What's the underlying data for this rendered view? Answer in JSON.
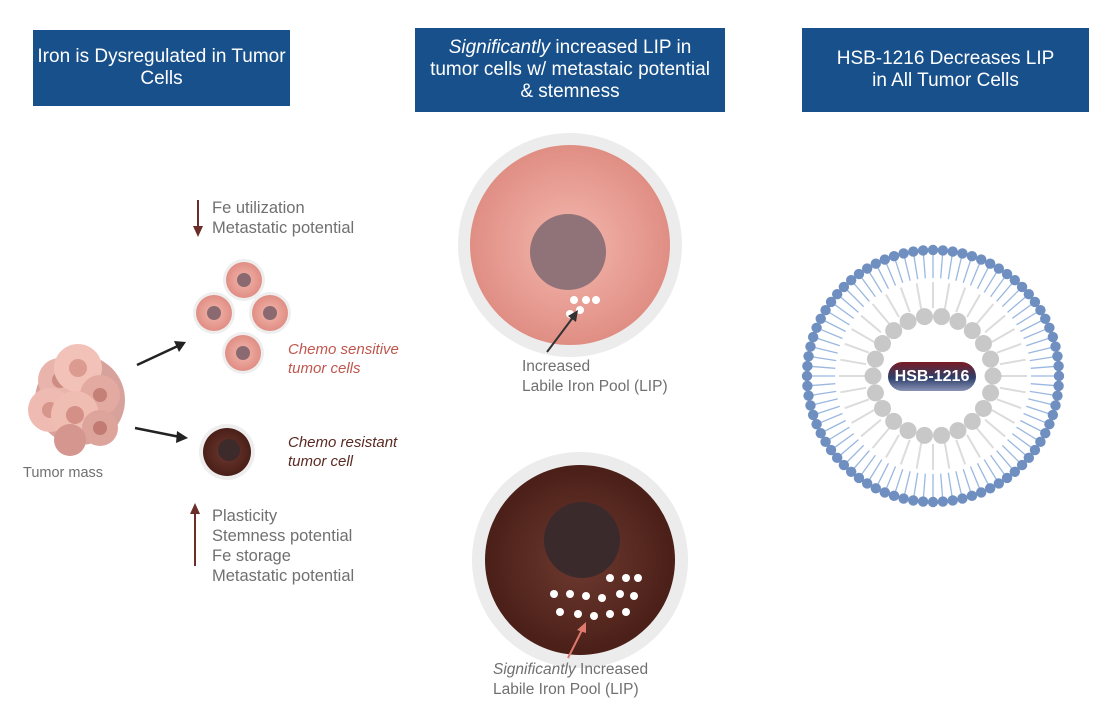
{
  "headers": {
    "left": "Iron is Dysregulated in Tumor Cells",
    "middle_italic": "Significantly",
    "middle_rest": " increased LIP in tumor cells w/ metastaic potential & stemness",
    "right": "HSB-1216 Decreases LIP in All Tumor Cells"
  },
  "left": {
    "down_line1": "Fe utilization",
    "down_line2": "Metastatic potential",
    "sensitive_line1": "Chemo sensitive",
    "sensitive_line2": "tumor cells",
    "resistant_line1": "Chemo resistant",
    "resistant_line2": "tumor cell",
    "tumor_mass": "Tumor mass",
    "up_items": [
      "Plasticity",
      "Stemness potential",
      "Fe storage",
      "Metastatic potential"
    ]
  },
  "middle": {
    "lip1_line1": "Increased",
    "lip1_line2": "Labile Iron Pool (LIP)",
    "lip2_italic": "Significantly",
    "lip2_rest": " Increased",
    "lip2_line2": "Labile Iron Pool (LIP)"
  },
  "right": {
    "drug_label": "HSB-1216"
  },
  "colors": {
    "header": "#17508a",
    "sensitive_text": "#c0574f",
    "resistant_text": "#5a2a22",
    "arrow_brown": "#6b2e28",
    "lipid_head": "#6f8fc0",
    "inner_head": "#c8c8c8"
  }
}
